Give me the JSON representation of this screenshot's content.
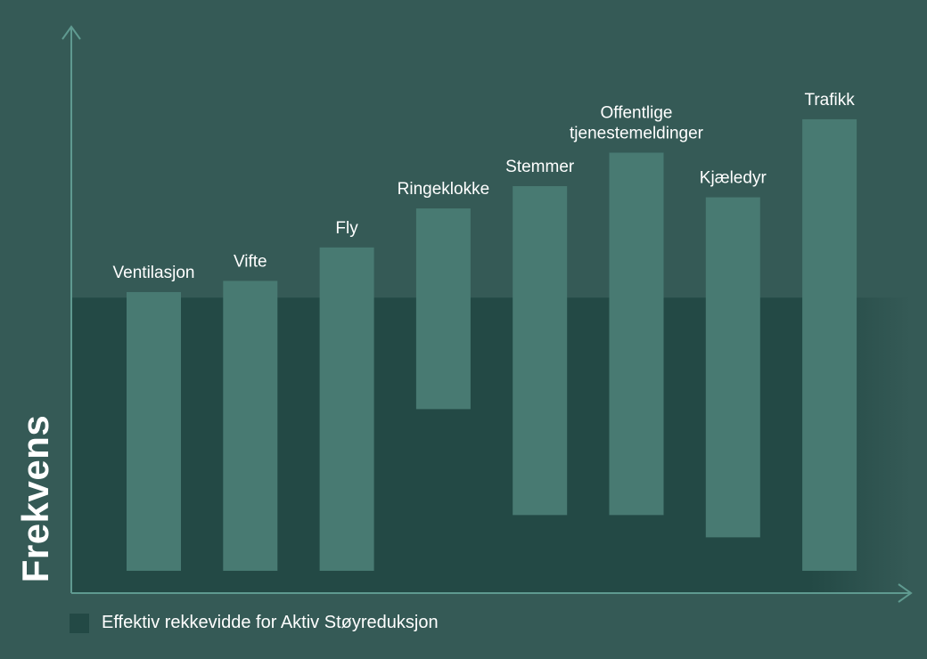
{
  "chart_data": {
    "type": "bar",
    "subtype": "floating-range",
    "ylabel": "Frekvens",
    "xlabel": "",
    "ylim": [
      0,
      100
    ],
    "grid": false,
    "legend_position": "bottom-left",
    "legend": [
      {
        "label": "Effektiv rekkevidde for Aktiv Støyreduksjon",
        "color": "#234945"
      }
    ],
    "anc_range": [
      0,
      53
    ],
    "categories": [
      {
        "label": [
          "Ventilasjon"
        ],
        "low": 4,
        "high": 54
      },
      {
        "label": [
          "Vifte"
        ],
        "low": 4,
        "high": 56
      },
      {
        "label": [
          "Fly"
        ],
        "low": 4,
        "high": 62
      },
      {
        "label": [
          "Ringeklokke"
        ],
        "low": 33,
        "high": 69
      },
      {
        "label": [
          "Stemmer"
        ],
        "low": 14,
        "high": 73
      },
      {
        "label": [
          "Offentlige",
          "tjenestemeldinger"
        ],
        "low": 14,
        "high": 79
      },
      {
        "label": [
          "Kjæledyr"
        ],
        "low": 10,
        "high": 71
      },
      {
        "label": [
          "Trafikk"
        ],
        "low": 4,
        "high": 85
      }
    ],
    "colors": {
      "background": "#355a56",
      "anc_band": "#234945",
      "bar": "#487a72",
      "axis": "#5f9a90",
      "text": "#ffffff"
    }
  }
}
